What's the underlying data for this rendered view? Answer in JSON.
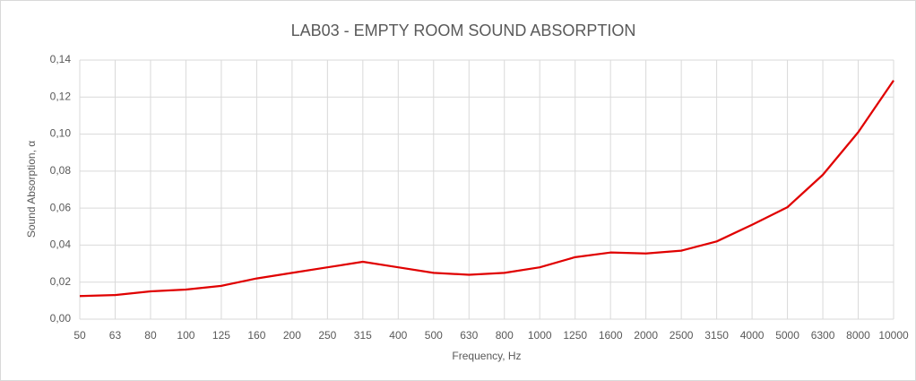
{
  "chart_data": {
    "type": "line",
    "title": "LAB03 - EMPTY ROOM SOUND ABSORPTION",
    "x_label": "Frequency, Hz",
    "y_label": "Sound Absorption, α",
    "categories": [
      "50",
      "63",
      "80",
      "100",
      "125",
      "160",
      "200",
      "250",
      "315",
      "400",
      "500",
      "630",
      "800",
      "1000",
      "1250",
      "1600",
      "2000",
      "2500",
      "3150",
      "4000",
      "5000",
      "6300",
      "8000",
      "10000"
    ],
    "values": [
      0.0125,
      0.013,
      0.015,
      0.016,
      0.018,
      0.022,
      0.025,
      0.028,
      0.031,
      0.028,
      0.025,
      0.024,
      0.025,
      0.028,
      0.0335,
      0.036,
      0.0355,
      0.037,
      0.042,
      0.051,
      0.0605,
      0.078,
      0.101,
      0.129
    ],
    "color": "#e00000",
    "ylim": [
      0,
      0.14
    ],
    "yticks": [
      {
        "value": 0,
        "label": "0,00"
      },
      {
        "value": 0.02,
        "label": "0,02"
      },
      {
        "value": 0.04,
        "label": "0,04"
      },
      {
        "value": 0.06,
        "label": "0,06"
      },
      {
        "value": 0.08,
        "label": "0,08"
      },
      {
        "value": 0.1,
        "label": "0,10"
      },
      {
        "value": 0.12,
        "label": "0,12"
      },
      {
        "value": 0.14,
        "label": "0,14"
      }
    ],
    "grid": true
  }
}
